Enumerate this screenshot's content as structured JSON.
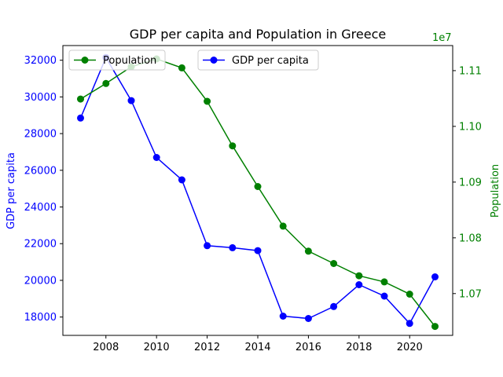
{
  "chart_data": {
    "type": "line",
    "title": "GDP per capita and Population in Greece",
    "x": [
      2007,
      2008,
      2009,
      2010,
      2011,
      2012,
      2013,
      2014,
      2015,
      2016,
      2017,
      2018,
      2019,
      2020,
      2021
    ],
    "xticks": [
      "2008",
      "2010",
      "2012",
      "2014",
      "2016",
      "2018",
      "2020"
    ],
    "xlim": [
      2006.3,
      2021.7
    ],
    "left_axis": {
      "label": "GDP per capita",
      "color": "#0000ff",
      "ylim": [
        17000,
        32800
      ],
      "ticks": [
        "18000",
        "20000",
        "22000",
        "24000",
        "26000",
        "28000",
        "30000",
        "32000"
      ]
    },
    "right_axis": {
      "label": "Population",
      "color": "#008000",
      "offset_label": "1e7",
      "ylim": [
        10625000,
        11145000
      ],
      "ticks": [
        "1.07",
        "1.08",
        "1.09",
        "1.10",
        "1.11"
      ]
    },
    "series": [
      {
        "name": "GDP per capita",
        "axis": "left",
        "color": "#0000ff",
        "values": [
          28850,
          32150,
          29800,
          26700,
          25480,
          21890,
          21780,
          21620,
          18050,
          17920,
          18570,
          19760,
          19140,
          17650,
          20190
        ]
      },
      {
        "name": "Population",
        "axis": "right",
        "color": "#008000",
        "values": [
          11049000,
          11077000,
          11107000,
          11121000,
          11105000,
          11045000,
          10965000,
          10892000,
          10821000,
          10776000,
          10754000,
          10732000,
          10721000,
          10699000,
          10641000
        ]
      }
    ],
    "legends": [
      {
        "entries": [
          "Population"
        ],
        "placement": "upper-left"
      },
      {
        "entries": [
          "GDP per capita"
        ],
        "placement": "upper-center"
      }
    ],
    "grid": false
  }
}
